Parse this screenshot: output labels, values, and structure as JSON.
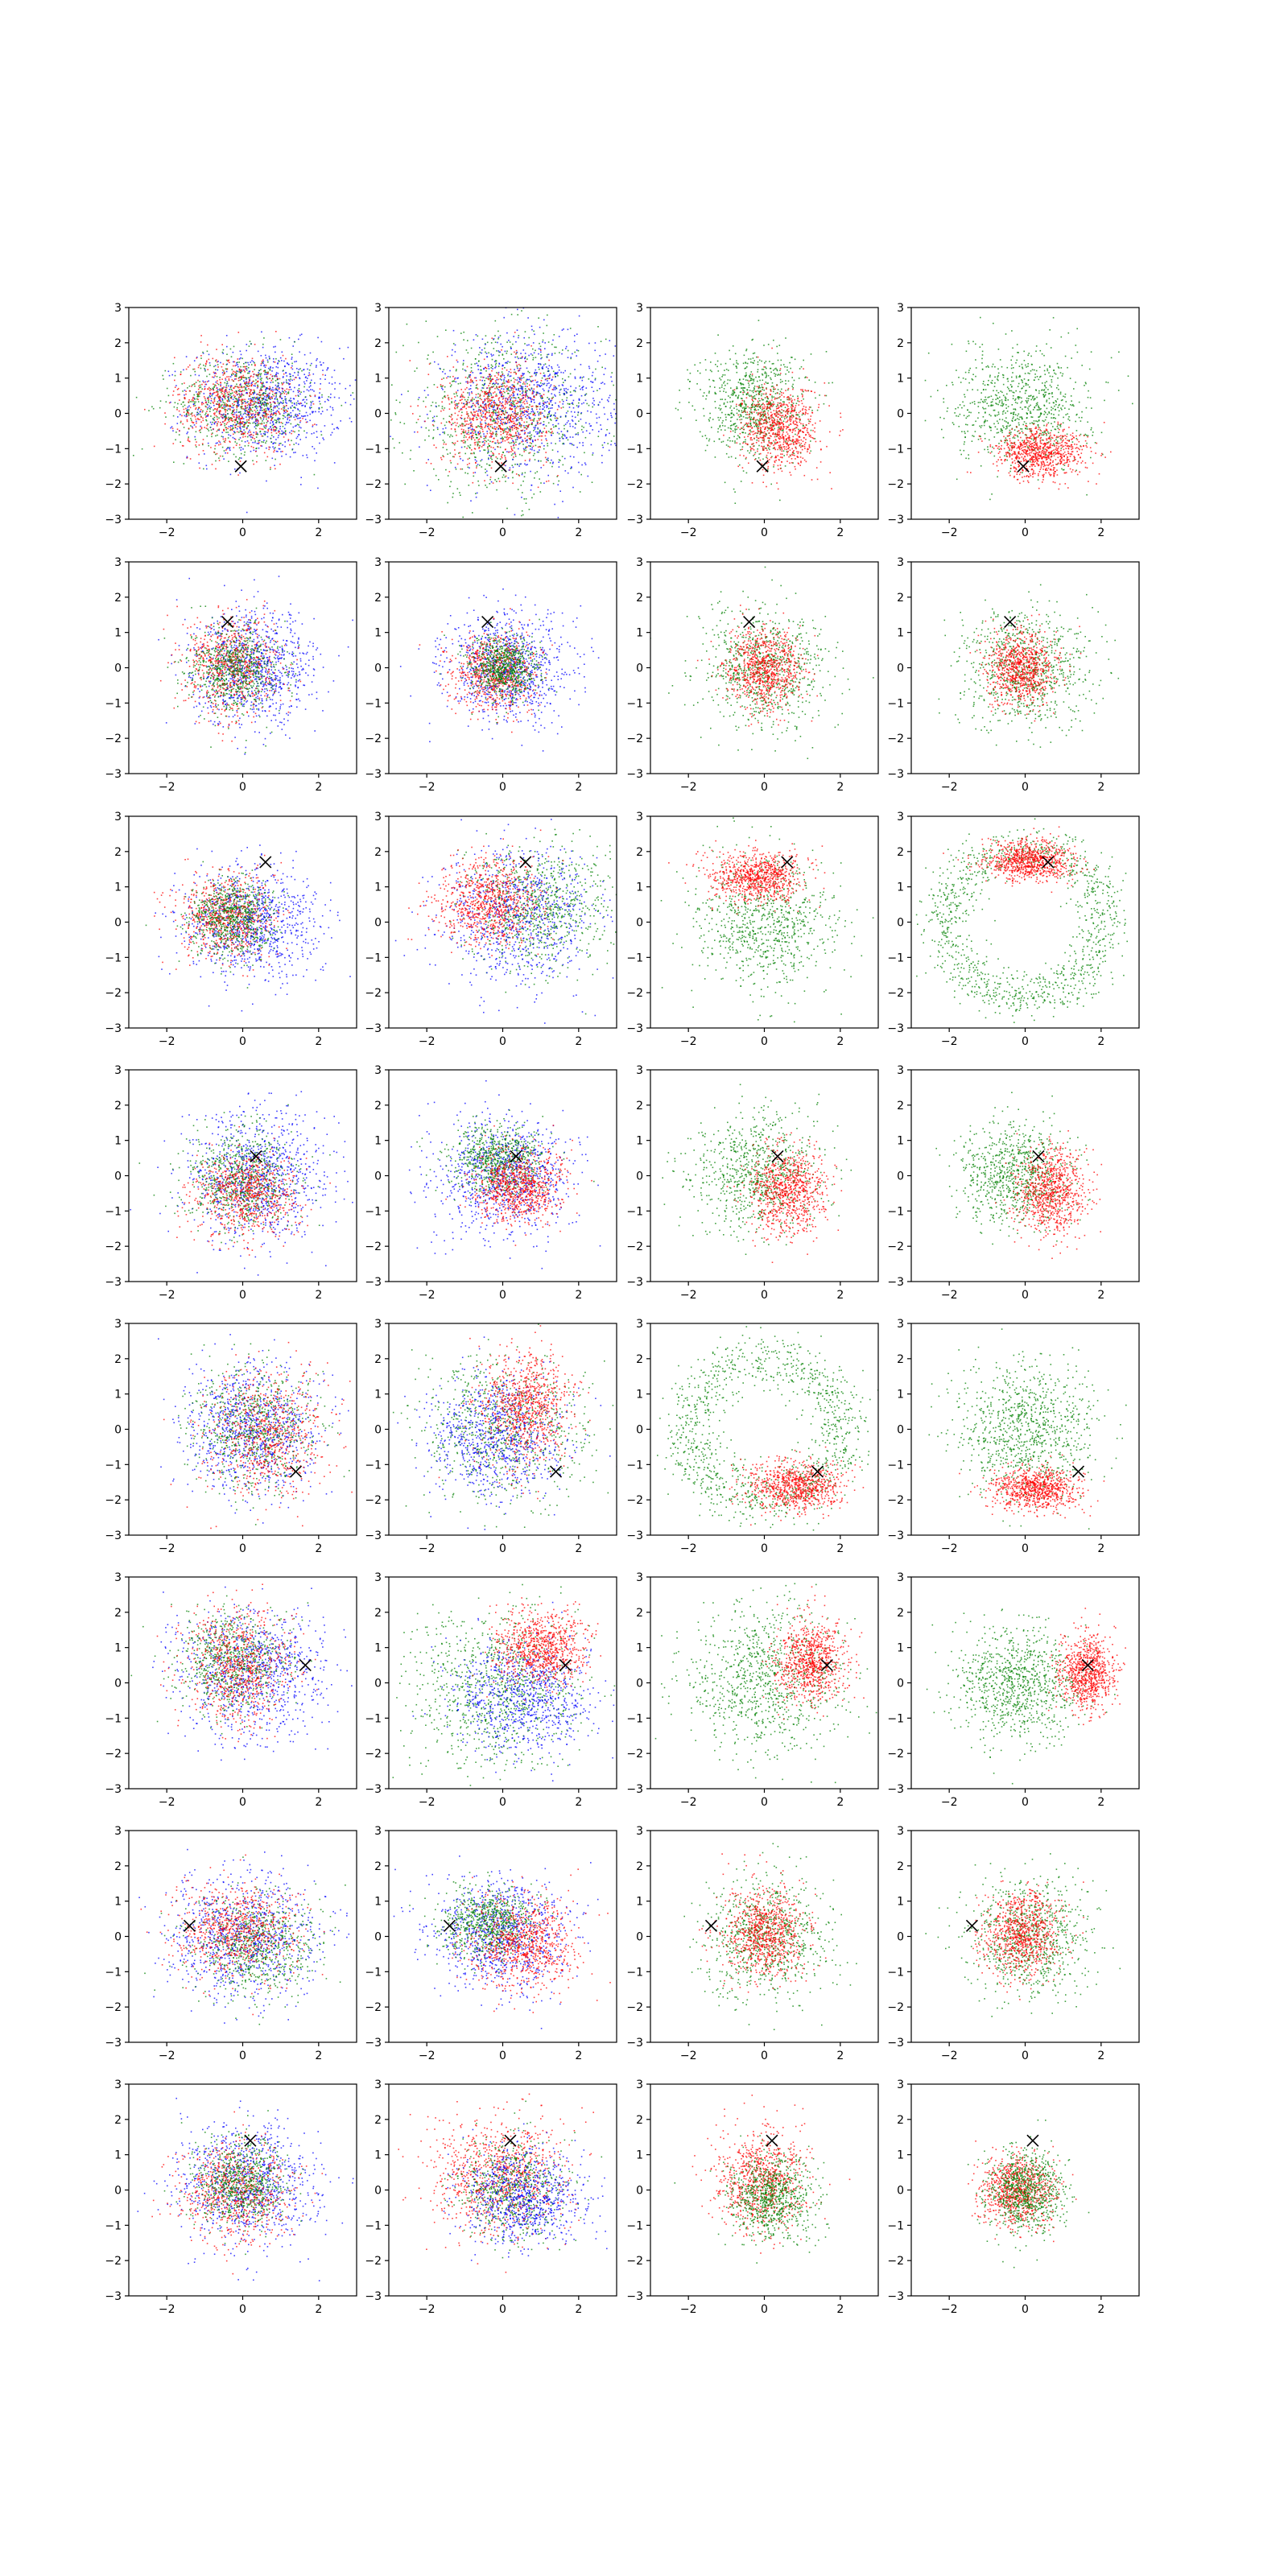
{
  "colors": {
    "series_a": "#0000ff",
    "series_b": "#ff0000",
    "series_c": "#008000",
    "marker": "#000000"
  },
  "chart_data": {
    "type": "scatter",
    "layout": {
      "rows": 8,
      "cols": 4
    },
    "xlim": [
      -3,
      3
    ],
    "ylim": [
      -3,
      3
    ],
    "xticks": [
      -2,
      0,
      2
    ],
    "yticks": [
      -3,
      -2,
      -1,
      0,
      1,
      2,
      3
    ],
    "xtick_labels": [
      "−2",
      "0",
      "2"
    ],
    "ytick_labels": [
      "−3",
      "−2",
      "−1",
      "0",
      "1",
      "2",
      "3"
    ],
    "grid": false,
    "marker_symbol": "×",
    "marker_positions": [
      [
        -0.05,
        -1.5
      ],
      [
        -0.4,
        1.3
      ],
      [
        0.6,
        1.7
      ],
      [
        0.35,
        0.55
      ],
      [
        1.4,
        -1.2
      ],
      [
        1.65,
        0.5
      ],
      [
        -1.4,
        0.3
      ],
      [
        0.2,
        1.4
      ]
    ],
    "panels": [
      {
        "row": 0,
        "col": 0,
        "marker": 0,
        "clouds": [
          {
            "c": "series_a",
            "mx": 0.6,
            "my": 0.3,
            "sx": 1.0,
            "sy": 0.8,
            "n": 900
          },
          {
            "c": "series_c",
            "mx": 0.0,
            "my": 0.3,
            "sx": 0.9,
            "sy": 0.7,
            "n": 700
          },
          {
            "c": "series_b",
            "mx": -0.2,
            "my": 0.3,
            "sx": 0.8,
            "sy": 0.7,
            "n": 700
          }
        ]
      },
      {
        "row": 0,
        "col": 1,
        "marker": 0,
        "clouds": [
          {
            "c": "series_c",
            "mx": 0.0,
            "my": 0.0,
            "sx": 1.3,
            "sy": 1.1,
            "n": 900
          },
          {
            "c": "series_a",
            "mx": 0.7,
            "my": 0.3,
            "sx": 1.1,
            "sy": 1.0,
            "n": 900
          },
          {
            "c": "series_b",
            "mx": -0.2,
            "my": 0.0,
            "sx": 0.7,
            "sy": 0.7,
            "n": 800
          }
        ]
      },
      {
        "row": 0,
        "col": 2,
        "marker": 0,
        "clouds": [
          {
            "c": "series_c",
            "mx": -0.3,
            "my": 0.3,
            "sx": 0.7,
            "sy": 0.8,
            "n": 800
          },
          {
            "c": "series_b",
            "mx": 0.4,
            "my": -0.4,
            "sx": 0.5,
            "sy": 0.6,
            "n": 800
          }
        ]
      },
      {
        "row": 0,
        "col": 3,
        "marker": 0,
        "clouds": [
          {
            "c": "series_c",
            "mx": -0.1,
            "my": 0.2,
            "sx": 0.9,
            "sy": 0.8,
            "n": 800
          },
          {
            "c": "series_b",
            "mx": 0.4,
            "my": -1.1,
            "sx": 0.6,
            "sy": 0.35,
            "n": 800
          }
        ]
      },
      {
        "row": 1,
        "col": 0,
        "marker": 1,
        "clouds": [
          {
            "c": "series_a",
            "mx": 0.3,
            "my": 0.0,
            "sx": 0.8,
            "sy": 0.8,
            "n": 900
          },
          {
            "c": "series_b",
            "mx": -0.3,
            "my": 0.1,
            "sx": 0.6,
            "sy": 0.7,
            "n": 700
          },
          {
            "c": "series_c",
            "mx": -0.2,
            "my": 0.0,
            "sx": 0.6,
            "sy": 0.6,
            "n": 700
          }
        ]
      },
      {
        "row": 1,
        "col": 1,
        "marker": 1,
        "clouds": [
          {
            "c": "series_a",
            "mx": 0.1,
            "my": 0.0,
            "sx": 0.8,
            "sy": 0.75,
            "n": 900
          },
          {
            "c": "series_b",
            "mx": -0.2,
            "my": -0.1,
            "sx": 0.55,
            "sy": 0.55,
            "n": 700
          },
          {
            "c": "series_c",
            "mx": 0.0,
            "my": 0.0,
            "sx": 0.45,
            "sy": 0.45,
            "n": 700
          }
        ]
      },
      {
        "row": 1,
        "col": 2,
        "marker": 1,
        "clouds": [
          {
            "c": "series_c",
            "mx": 0.0,
            "my": 0.0,
            "sx": 0.85,
            "sy": 0.85,
            "n": 800
          },
          {
            "c": "series_b",
            "mx": 0.0,
            "my": 0.0,
            "sx": 0.5,
            "sy": 0.55,
            "n": 800
          }
        ]
      },
      {
        "row": 1,
        "col": 3,
        "marker": 1,
        "clouds": [
          {
            "c": "series_c",
            "mx": 0.0,
            "my": 0.0,
            "sx": 0.85,
            "sy": 0.85,
            "n": 800
          },
          {
            "c": "series_b",
            "mx": -0.1,
            "my": 0.0,
            "sx": 0.45,
            "sy": 0.5,
            "n": 800
          }
        ]
      },
      {
        "row": 2,
        "col": 0,
        "marker": 2,
        "clouds": [
          {
            "c": "series_a",
            "mx": 0.2,
            "my": 0.0,
            "sx": 0.9,
            "sy": 0.8,
            "n": 900
          },
          {
            "c": "series_b",
            "mx": -0.5,
            "my": 0.2,
            "sx": 0.6,
            "sy": 0.6,
            "n": 700
          },
          {
            "c": "series_c",
            "mx": -0.3,
            "my": 0.1,
            "sx": 0.55,
            "sy": 0.55,
            "n": 700
          }
        ]
      },
      {
        "row": 2,
        "col": 1,
        "marker": 2,
        "clouds": [
          {
            "c": "series_c",
            "mx": 0.9,
            "my": 0.4,
            "sx": 0.9,
            "sy": 0.9,
            "n": 800
          },
          {
            "c": "series_a",
            "mx": 0.4,
            "my": 0.2,
            "sx": 1.0,
            "sy": 1.0,
            "n": 800
          },
          {
            "c": "series_b",
            "mx": -0.4,
            "my": 0.6,
            "sx": 0.7,
            "sy": 0.6,
            "n": 800
          }
        ]
      },
      {
        "row": 2,
        "col": 2,
        "marker": 2,
        "clouds": [
          {
            "c": "series_c",
            "mx": 0.0,
            "my": 0.0,
            "sx": 0.9,
            "sy": 0.9,
            "n": 800
          },
          {
            "c": "series_b",
            "mx": -0.2,
            "my": 1.3,
            "sx": 0.6,
            "sy": 0.35,
            "n": 800
          }
        ]
      },
      {
        "row": 2,
        "col": 3,
        "marker": 2,
        "clouds": [
          {
            "c": "series_c",
            "ring": true,
            "mx": 0.0,
            "my": 0.0,
            "r": 2.1,
            "sr": 0.35,
            "n": 1100
          },
          {
            "c": "series_b",
            "mx": 0.1,
            "my": 1.75,
            "sx": 0.55,
            "sy": 0.3,
            "n": 800
          }
        ]
      },
      {
        "row": 3,
        "col": 0,
        "marker": 3,
        "clouds": [
          {
            "c": "series_a",
            "mx": 0.4,
            "my": -0.1,
            "sx": 0.9,
            "sy": 0.9,
            "n": 900
          },
          {
            "c": "series_c",
            "mx": 0.0,
            "my": -0.1,
            "sx": 0.7,
            "sy": 0.7,
            "n": 700
          },
          {
            "c": "series_b",
            "mx": 0.1,
            "my": -0.5,
            "sx": 0.7,
            "sy": 0.6,
            "n": 700
          }
        ]
      },
      {
        "row": 3,
        "col": 1,
        "marker": 3,
        "clouds": [
          {
            "c": "series_a",
            "mx": 0.0,
            "my": 0.0,
            "sx": 0.9,
            "sy": 0.85,
            "n": 900
          },
          {
            "c": "series_c",
            "mx": -0.1,
            "my": 0.5,
            "sx": 0.6,
            "sy": 0.5,
            "n": 700
          },
          {
            "c": "series_b",
            "mx": 0.4,
            "my": -0.3,
            "sx": 0.6,
            "sy": 0.5,
            "n": 800
          }
        ]
      },
      {
        "row": 3,
        "col": 2,
        "marker": 3,
        "clouds": [
          {
            "c": "series_c",
            "mx": -0.2,
            "my": 0.1,
            "sx": 0.85,
            "sy": 0.85,
            "n": 800
          },
          {
            "c": "series_b",
            "mx": 0.6,
            "my": -0.4,
            "sx": 0.5,
            "sy": 0.6,
            "n": 800
          }
        ]
      },
      {
        "row": 3,
        "col": 3,
        "marker": 3,
        "clouds": [
          {
            "c": "series_c",
            "mx": -0.3,
            "my": 0.1,
            "sx": 0.7,
            "sy": 0.7,
            "n": 800
          },
          {
            "c": "series_b",
            "mx": 0.7,
            "my": -0.4,
            "sx": 0.45,
            "sy": 0.6,
            "n": 800
          }
        ]
      },
      {
        "row": 4,
        "col": 0,
        "marker": 4,
        "clouds": [
          {
            "c": "series_a",
            "mx": 0.2,
            "my": 0.0,
            "sx": 0.9,
            "sy": 0.9,
            "n": 900
          },
          {
            "c": "series_c",
            "mx": 0.3,
            "my": 0.0,
            "sx": 0.8,
            "sy": 0.8,
            "n": 700
          },
          {
            "c": "series_b",
            "mx": 0.6,
            "my": -0.2,
            "sx": 0.8,
            "sy": 0.9,
            "n": 700
          }
        ]
      },
      {
        "row": 4,
        "col": 1,
        "marker": 4,
        "clouds": [
          {
            "c": "series_c",
            "mx": 0.0,
            "my": 0.0,
            "sx": 1.1,
            "sy": 1.0,
            "n": 800
          },
          {
            "c": "series_a",
            "mx": -0.2,
            "my": -0.2,
            "sx": 0.9,
            "sy": 0.9,
            "n": 800
          },
          {
            "c": "series_b",
            "mx": 0.6,
            "my": 0.6,
            "sx": 0.6,
            "sy": 0.8,
            "n": 800
          }
        ]
      },
      {
        "row": 4,
        "col": 2,
        "marker": 4,
        "clouds": [
          {
            "c": "series_c",
            "ring": true,
            "mx": 0.0,
            "my": 0.0,
            "r": 2.0,
            "sr": 0.4,
            "n": 1100
          },
          {
            "c": "series_b",
            "mx": 0.8,
            "my": -1.6,
            "sx": 0.6,
            "sy": 0.35,
            "n": 800
          }
        ]
      },
      {
        "row": 4,
        "col": 3,
        "marker": 4,
        "clouds": [
          {
            "c": "series_c",
            "mx": 0.0,
            "my": 0.0,
            "sx": 0.9,
            "sy": 0.95,
            "n": 900
          },
          {
            "c": "series_b",
            "mx": 0.3,
            "my": -1.7,
            "sx": 0.55,
            "sy": 0.3,
            "n": 800
          }
        ]
      },
      {
        "row": 5,
        "col": 0,
        "marker": 5,
        "clouds": [
          {
            "c": "series_a",
            "mx": 0.2,
            "my": 0.3,
            "sx": 1.0,
            "sy": 0.9,
            "n": 900
          },
          {
            "c": "series_c",
            "mx": -0.3,
            "my": 0.6,
            "sx": 0.7,
            "sy": 0.7,
            "n": 700
          },
          {
            "c": "series_b",
            "mx": -0.1,
            "my": 0.5,
            "sx": 0.7,
            "sy": 0.8,
            "n": 700
          }
        ]
      },
      {
        "row": 5,
        "col": 1,
        "marker": 5,
        "clouds": [
          {
            "c": "series_c",
            "mx": -0.3,
            "my": -0.2,
            "sx": 1.2,
            "sy": 1.1,
            "n": 900
          },
          {
            "c": "series_a",
            "mx": 0.5,
            "my": -0.4,
            "sx": 0.9,
            "sy": 0.8,
            "n": 800
          },
          {
            "c": "series_b",
            "mx": 1.0,
            "my": 1.0,
            "sx": 0.6,
            "sy": 0.5,
            "n": 800
          }
        ]
      },
      {
        "row": 5,
        "col": 2,
        "marker": 5,
        "clouds": [
          {
            "c": "series_c",
            "mx": 0.0,
            "my": 0.1,
            "sx": 1.0,
            "sy": 1.0,
            "n": 900
          },
          {
            "c": "series_b",
            "mx": 1.2,
            "my": 0.6,
            "sx": 0.45,
            "sy": 0.6,
            "n": 800
          }
        ]
      },
      {
        "row": 5,
        "col": 3,
        "marker": 5,
        "clouds": [
          {
            "c": "series_c",
            "mx": -0.2,
            "my": 0.0,
            "sx": 0.8,
            "sy": 0.8,
            "n": 900
          },
          {
            "c": "series_b",
            "mx": 1.6,
            "my": 0.3,
            "sx": 0.35,
            "sy": 0.55,
            "n": 800
          }
        ]
      },
      {
        "row": 6,
        "col": 0,
        "marker": 6,
        "clouds": [
          {
            "c": "series_a",
            "mx": 0.0,
            "my": 0.0,
            "sx": 1.0,
            "sy": 0.85,
            "n": 900
          },
          {
            "c": "series_c",
            "mx": 0.3,
            "my": -0.2,
            "sx": 0.8,
            "sy": 0.7,
            "n": 700
          },
          {
            "c": "series_b",
            "mx": -0.2,
            "my": 0.2,
            "sx": 0.8,
            "sy": 0.7,
            "n": 700
          }
        ]
      },
      {
        "row": 6,
        "col": 1,
        "marker": 6,
        "clouds": [
          {
            "c": "series_a",
            "mx": -0.1,
            "my": 0.1,
            "sx": 0.9,
            "sy": 0.8,
            "n": 900
          },
          {
            "c": "series_c",
            "mx": -0.4,
            "my": 0.4,
            "sx": 0.6,
            "sy": 0.5,
            "n": 700
          },
          {
            "c": "series_b",
            "mx": 0.6,
            "my": -0.2,
            "sx": 0.7,
            "sy": 0.7,
            "n": 800
          }
        ]
      },
      {
        "row": 6,
        "col": 2,
        "marker": 6,
        "clouds": [
          {
            "c": "series_c",
            "mx": 0.0,
            "my": 0.0,
            "sx": 0.8,
            "sy": 0.85,
            "n": 800
          },
          {
            "c": "series_b",
            "mx": 0.0,
            "my": 0.1,
            "sx": 0.55,
            "sy": 0.65,
            "n": 800
          }
        ]
      },
      {
        "row": 6,
        "col": 3,
        "marker": 6,
        "clouds": [
          {
            "c": "series_c",
            "mx": 0.1,
            "my": 0.0,
            "sx": 0.8,
            "sy": 0.85,
            "n": 800
          },
          {
            "c": "series_b",
            "mx": -0.1,
            "my": 0.1,
            "sx": 0.5,
            "sy": 0.6,
            "n": 800
          }
        ]
      },
      {
        "row": 7,
        "col": 0,
        "marker": 7,
        "clouds": [
          {
            "c": "series_a",
            "mx": 0.1,
            "my": 0.2,
            "sx": 0.9,
            "sy": 0.85,
            "n": 900
          },
          {
            "c": "series_b",
            "mx": -0.2,
            "my": 0.0,
            "sx": 0.7,
            "sy": 0.7,
            "n": 700
          },
          {
            "c": "series_c",
            "mx": -0.1,
            "my": 0.2,
            "sx": 0.6,
            "sy": 0.6,
            "n": 700
          }
        ]
      },
      {
        "row": 7,
        "col": 1,
        "marker": 7,
        "clouds": [
          {
            "c": "series_b",
            "mx": -0.1,
            "my": 0.4,
            "sx": 0.9,
            "sy": 0.8,
            "n": 900
          },
          {
            "c": "series_c",
            "mx": 0.2,
            "my": 0.0,
            "sx": 0.7,
            "sy": 0.7,
            "n": 600
          },
          {
            "c": "series_a",
            "mx": 0.5,
            "my": -0.2,
            "sx": 0.8,
            "sy": 0.7,
            "n": 800
          }
        ]
      },
      {
        "row": 7,
        "col": 2,
        "marker": 7,
        "clouds": [
          {
            "c": "series_b",
            "mx": -0.1,
            "my": 0.3,
            "sx": 0.6,
            "sy": 0.7,
            "n": 800
          },
          {
            "c": "series_c",
            "mx": 0.2,
            "my": -0.2,
            "sx": 0.55,
            "sy": 0.6,
            "n": 800
          }
        ]
      },
      {
        "row": 7,
        "col": 3,
        "marker": 7,
        "clouds": [
          {
            "c": "series_b",
            "mx": -0.2,
            "my": 0.0,
            "sx": 0.5,
            "sy": 0.5,
            "n": 800
          },
          {
            "c": "series_c",
            "mx": 0.0,
            "my": 0.0,
            "sx": 0.5,
            "sy": 0.55,
            "n": 800
          }
        ]
      }
    ]
  }
}
